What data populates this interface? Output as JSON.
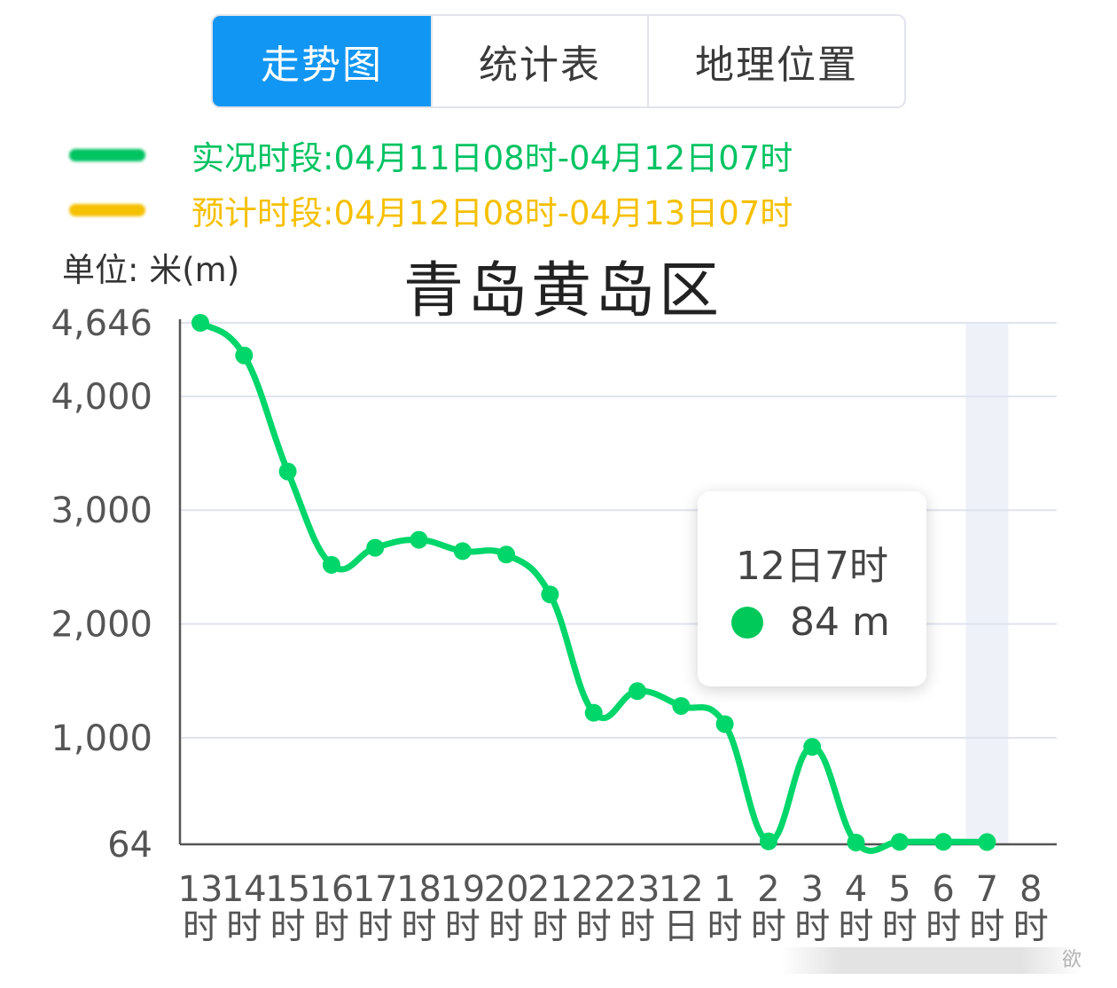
{
  "tabs": [
    {
      "label": "走势图",
      "active": true
    },
    {
      "label": "统计表",
      "active": false
    },
    {
      "label": "地理位置",
      "active": false
    }
  ],
  "legend": {
    "actual": {
      "text": "实况时段:04月11日08时-04月12日07时",
      "color": "#00c362"
    },
    "forecast": {
      "text": "预计时段:04月12日08时-04月13日07时",
      "color": "#f5c000"
    }
  },
  "unit_label": "单位:  米(m)",
  "chart_title": "青岛黄岛区",
  "tooltip": {
    "title": "12日7时",
    "value": "84 m",
    "dot_color": "#00c95a"
  },
  "chart_data": {
    "type": "line",
    "title": "青岛黄岛区",
    "ylabel": "米(m)",
    "y_ticks": [
      {
        "value": 64,
        "label": "64"
      },
      {
        "value": 1000,
        "label": "1,000"
      },
      {
        "value": 2000,
        "label": "2,000"
      },
      {
        "value": 3000,
        "label": "3,000"
      },
      {
        "value": 4000,
        "label": "4,000"
      },
      {
        "value": 4646,
        "label": "4,646"
      }
    ],
    "ylim": [
      64,
      4646
    ],
    "categories": [
      [
        "13",
        "时"
      ],
      [
        "14",
        "时"
      ],
      [
        "15",
        "时"
      ],
      [
        "16",
        "时"
      ],
      [
        "17",
        "时"
      ],
      [
        "18",
        "时"
      ],
      [
        "19",
        "时"
      ],
      [
        "20",
        "时"
      ],
      [
        "21",
        "时"
      ],
      [
        "22",
        "时"
      ],
      [
        "23",
        "时"
      ],
      [
        "12",
        "日"
      ],
      [
        "1",
        "时"
      ],
      [
        "2",
        "时"
      ],
      [
        "3",
        "时"
      ],
      [
        "4",
        "时"
      ],
      [
        "5",
        "时"
      ],
      [
        "6",
        "时"
      ],
      [
        "7",
        "时"
      ],
      [
        "8",
        "时"
      ]
    ],
    "series": [
      {
        "color": "#00d66a",
        "values": [
          4646,
          4360,
          3340,
          2520,
          2670,
          2740,
          2640,
          2610,
          2260,
          1220,
          1410,
          1280,
          1120,
          90,
          920,
          80,
          85,
          86,
          84,
          null
        ]
      }
    ],
    "highlight_index": 18,
    "grid": true
  },
  "watermark": "欲"
}
